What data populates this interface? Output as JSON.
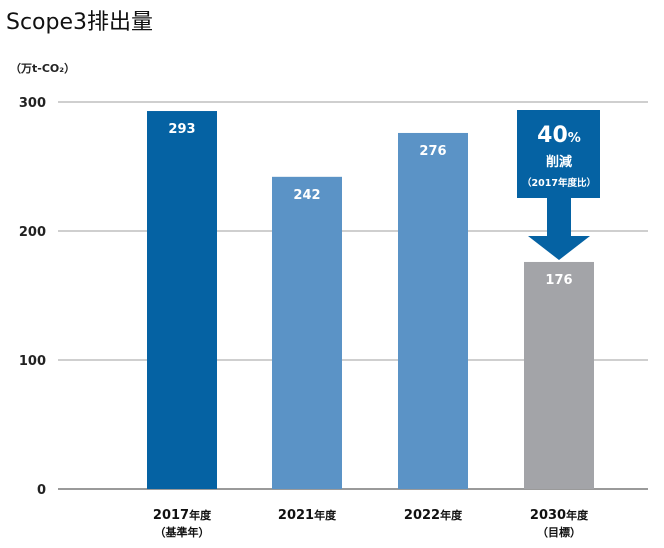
{
  "chart_data": {
    "type": "bar",
    "title": "Scope3排出量",
    "ylabel": "（万t-CO₂）",
    "ylim": [
      0,
      300
    ],
    "yticks": [
      0,
      100,
      200,
      300
    ],
    "grid": true,
    "categories": [
      {
        "label": "2017年度",
        "sublabel": "（基準年）"
      },
      {
        "label": "2021年度",
        "sublabel": ""
      },
      {
        "label": "2022年度",
        "sublabel": ""
      },
      {
        "label": "2030年度",
        "sublabel": "（目標）"
      }
    ],
    "values": [
      293,
      242,
      276,
      176
    ],
    "bar_colors": [
      "#0562a3",
      "#5b93c6",
      "#5b93c6",
      "#a3a4a8"
    ],
    "annotation": {
      "value": "40",
      "unit": "%",
      "line1": "削減",
      "line2": "（2017年度比）",
      "color": "#0562a3"
    }
  }
}
